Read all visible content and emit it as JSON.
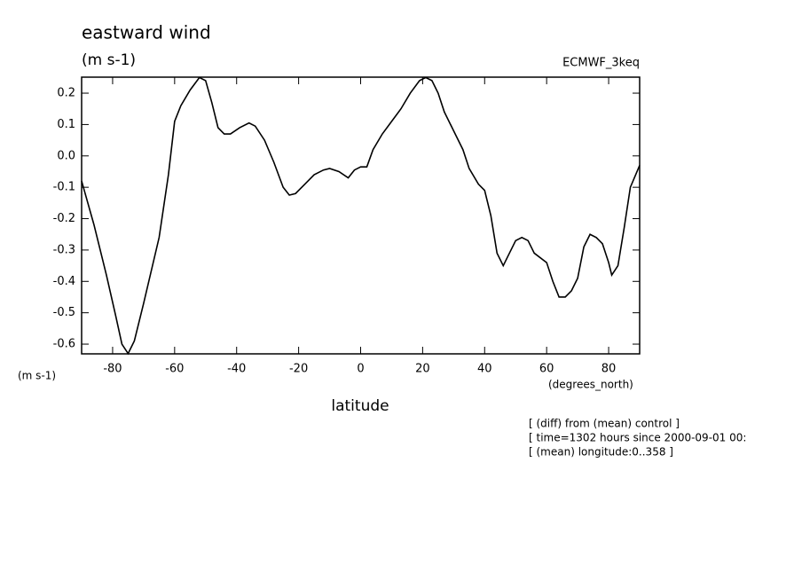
{
  "chart_data": {
    "type": "line",
    "title": "eastward wind",
    "subtitle": "(m s-1)",
    "dataset": "ECMWF_3keq",
    "ylabel": "(m s-1)",
    "xunits": "(degrees_north)",
    "xlabel": "latitude",
    "notes": [
      "[ (diff) from (mean) control ]",
      "[ time=1302 hours since 2000-09-01 00:",
      "[ (mean) longitude:0..358 ]"
    ],
    "x": [
      -90,
      -86,
      -82,
      -79,
      -77,
      -75,
      -73,
      -70,
      -65,
      -62,
      -60,
      -58,
      -55,
      -52,
      -50,
      -48,
      -46,
      -44,
      -42,
      -39,
      -36,
      -34,
      -31,
      -28,
      -25,
      -23,
      -21,
      -18,
      -15,
      -12,
      -10,
      -7,
      -4,
      -2,
      0,
      2,
      4,
      7,
      10,
      13,
      16,
      19,
      21,
      23,
      25,
      27,
      30,
      33,
      35,
      38,
      40,
      42,
      44,
      46,
      48,
      50,
      52,
      54,
      56,
      60,
      62,
      64,
      66,
      68,
      70,
      72,
      74,
      76,
      78,
      80,
      81,
      83,
      85,
      87,
      90
    ],
    "series": [
      {
        "color": "#000000",
        "values": [
          -0.08,
          -0.22,
          -0.38,
          -0.51,
          -0.6,
          -0.63,
          -0.59,
          -0.47,
          -0.26,
          -0.06,
          0.11,
          0.16,
          0.21,
          0.25,
          0.24,
          0.17,
          0.09,
          0.07,
          0.07,
          0.09,
          0.105,
          0.095,
          0.05,
          -0.02,
          -0.1,
          -0.125,
          -0.12,
          -0.09,
          -0.06,
          -0.045,
          -0.04,
          -0.05,
          -0.07,
          -0.045,
          -0.035,
          -0.035,
          0.02,
          0.07,
          0.11,
          0.15,
          0.2,
          0.24,
          0.25,
          0.24,
          0.2,
          0.14,
          0.08,
          0.02,
          -0.04,
          -0.09,
          -0.11,
          -0.19,
          -0.31,
          -0.35,
          -0.31,
          -0.27,
          -0.26,
          -0.27,
          -0.31,
          -0.34,
          -0.4,
          -0.45,
          -0.45,
          -0.43,
          -0.39,
          -0.29,
          -0.25,
          -0.26,
          -0.28,
          -0.34,
          -0.38,
          -0.35,
          -0.23,
          -0.1,
          -0.03
        ]
      }
    ],
    "xlim": [
      -90,
      90
    ],
    "xticks": [
      -80,
      -60,
      -40,
      -20,
      0,
      20,
      40,
      60,
      80
    ],
    "ylim": [
      -0.631,
      0.251
    ],
    "yticks": [
      0.2,
      0.1,
      {
        "value": 0,
        "label": "0.0"
      },
      -0.1,
      -0.2,
      -0.3,
      -0.4,
      -0.5,
      -0.6
    ]
  }
}
